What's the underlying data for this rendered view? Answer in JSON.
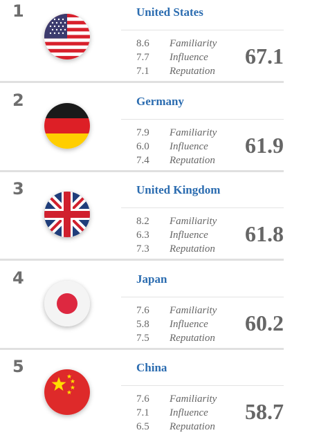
{
  "entries": [
    {
      "rank": "1",
      "country": "United States",
      "flag_icon": "us-flag-icon",
      "metrics": [
        {
          "value": "8.6",
          "label": "Familiarity"
        },
        {
          "value": "7.7",
          "label": "Influence"
        },
        {
          "value": "7.1",
          "label": "Reputation"
        }
      ],
      "score": "67.1"
    },
    {
      "rank": "2",
      "country": "Germany",
      "flag_icon": "germany-flag-icon",
      "metrics": [
        {
          "value": "7.9",
          "label": "Familiarity"
        },
        {
          "value": "6.0",
          "label": "Influence"
        },
        {
          "value": "7.4",
          "label": "Reputation"
        }
      ],
      "score": "61.9"
    },
    {
      "rank": "3",
      "country": "United Kingdom",
      "flag_icon": "uk-flag-icon",
      "metrics": [
        {
          "value": "8.2",
          "label": "Familiarity"
        },
        {
          "value": "6.3",
          "label": "Influence"
        },
        {
          "value": "7.3",
          "label": "Reputation"
        }
      ],
      "score": "61.8"
    },
    {
      "rank": "4",
      "country": "Japan",
      "flag_icon": "japan-flag-icon",
      "metrics": [
        {
          "value": "7.6",
          "label": "Familiarity"
        },
        {
          "value": "5.8",
          "label": "Influence"
        },
        {
          "value": "7.5",
          "label": "Reputation"
        }
      ],
      "score": "60.2"
    },
    {
      "rank": "5",
      "country": "China",
      "flag_icon": "china-flag-icon",
      "metrics": [
        {
          "value": "7.6",
          "label": "Familiarity"
        },
        {
          "value": "7.1",
          "label": "Influence"
        },
        {
          "value": "6.5",
          "label": "Reputation"
        }
      ],
      "score": "58.7"
    }
  ],
  "colors": {
    "country_name": "#2b6cb0",
    "rank": "#6e6e6e",
    "text": "#666666",
    "separator": "#e0e0e0"
  }
}
